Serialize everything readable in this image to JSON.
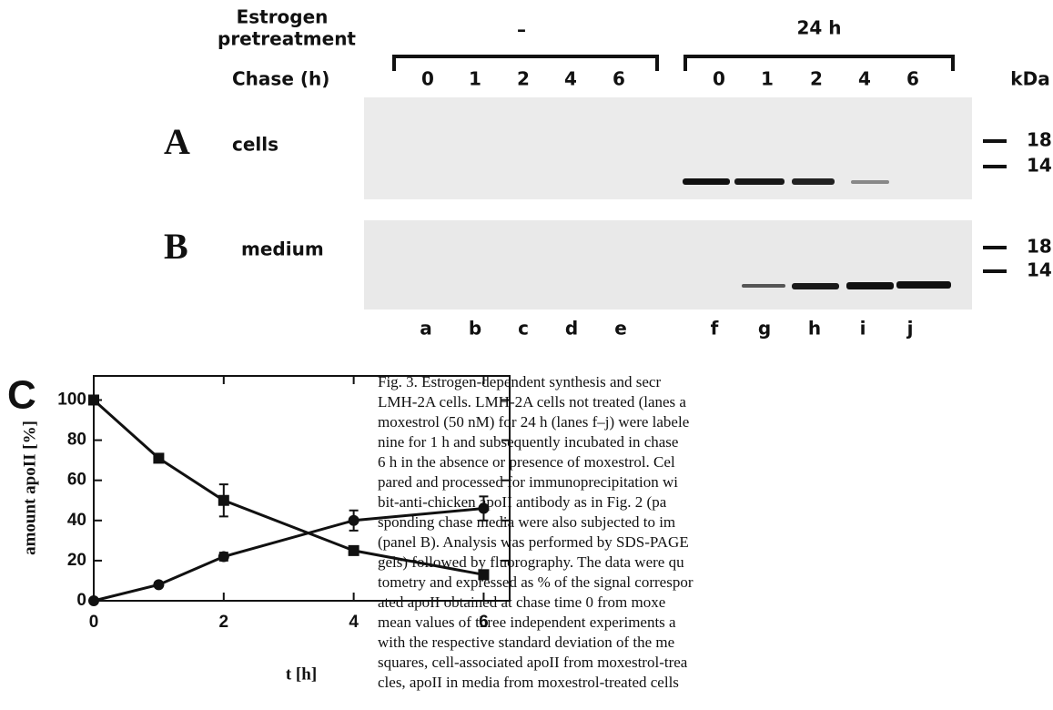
{
  "header": {
    "pretreatment_label": [
      "Estrogen",
      "pretreatment"
    ],
    "untreated_label": "–",
    "treated_label": "24 h",
    "chase_label": "Chase (h)",
    "chase_times_untreated": [
      "0",
      "1",
      "2",
      "4",
      "6"
    ],
    "chase_times_treated": [
      "0",
      "1",
      "2",
      "4",
      "6"
    ],
    "kda_label": "kDa"
  },
  "panels": [
    {
      "letter": "A",
      "label": "cells",
      "markers": [
        "18",
        "14"
      ]
    },
    {
      "letter": "B",
      "label": "medium",
      "markers": [
        "18",
        "14"
      ]
    }
  ],
  "lanes": [
    "a",
    "b",
    "c",
    "d",
    "e",
    "f",
    "g",
    "h",
    "i",
    "j"
  ],
  "chart_data": {
    "type": "line",
    "panel_label": "C",
    "xlabel": "t [h]",
    "ylabel": "amount apoII [%]",
    "x": [
      0,
      1,
      2,
      4,
      6
    ],
    "series": [
      {
        "color": "#111111",
        "marker": "square",
        "values": [
          100,
          71,
          50,
          25,
          13
        ],
        "errors": [
          1,
          2,
          8,
          1,
          1
        ]
      },
      {
        "color": "#111111",
        "marker": "circle",
        "values": [
          0,
          8,
          22,
          40,
          46
        ],
        "errors": [
          0,
          1,
          2,
          5,
          6
        ]
      }
    ],
    "xlim": [
      0,
      6.4
    ],
    "ylim": [
      0,
      112
    ],
    "xticks": [
      0,
      2,
      4,
      6
    ],
    "yticks": [
      0,
      20,
      40,
      60,
      80,
      100
    ]
  },
  "caption": {
    "lines": [
      "Fig. 3.  Estrogen-dependent synthesis and secr",
      "LMH-2A cells. LMH-2A cells not treated (lanes a",
      "moxestrol (50 nM) for 24 h (lanes f–j) were labele",
      "nine for 1 h and subsequently incubated in chase",
      "6 h in the absence or presence of moxestrol. Cel",
      "pared and processed for immunoprecipitation wi",
      "bit-anti-chicken apoII antibody as in Fig. 2 (pa",
      "sponding chase media were also subjected to im",
      "(panel B). Analysis was performed by SDS-PAGE",
      "gels) followed by fluorography. The data were qu",
      "tometry and expressed as % of the signal correspor",
      "ated apoII obtained at chase time 0 from moxe",
      "mean values of three independent experiments a",
      "with the respective standard deviation of the me",
      "squares, cell-associated apoII from moxestrol-trea",
      "cles, apoII in media from moxestrol-treated cells"
    ]
  }
}
